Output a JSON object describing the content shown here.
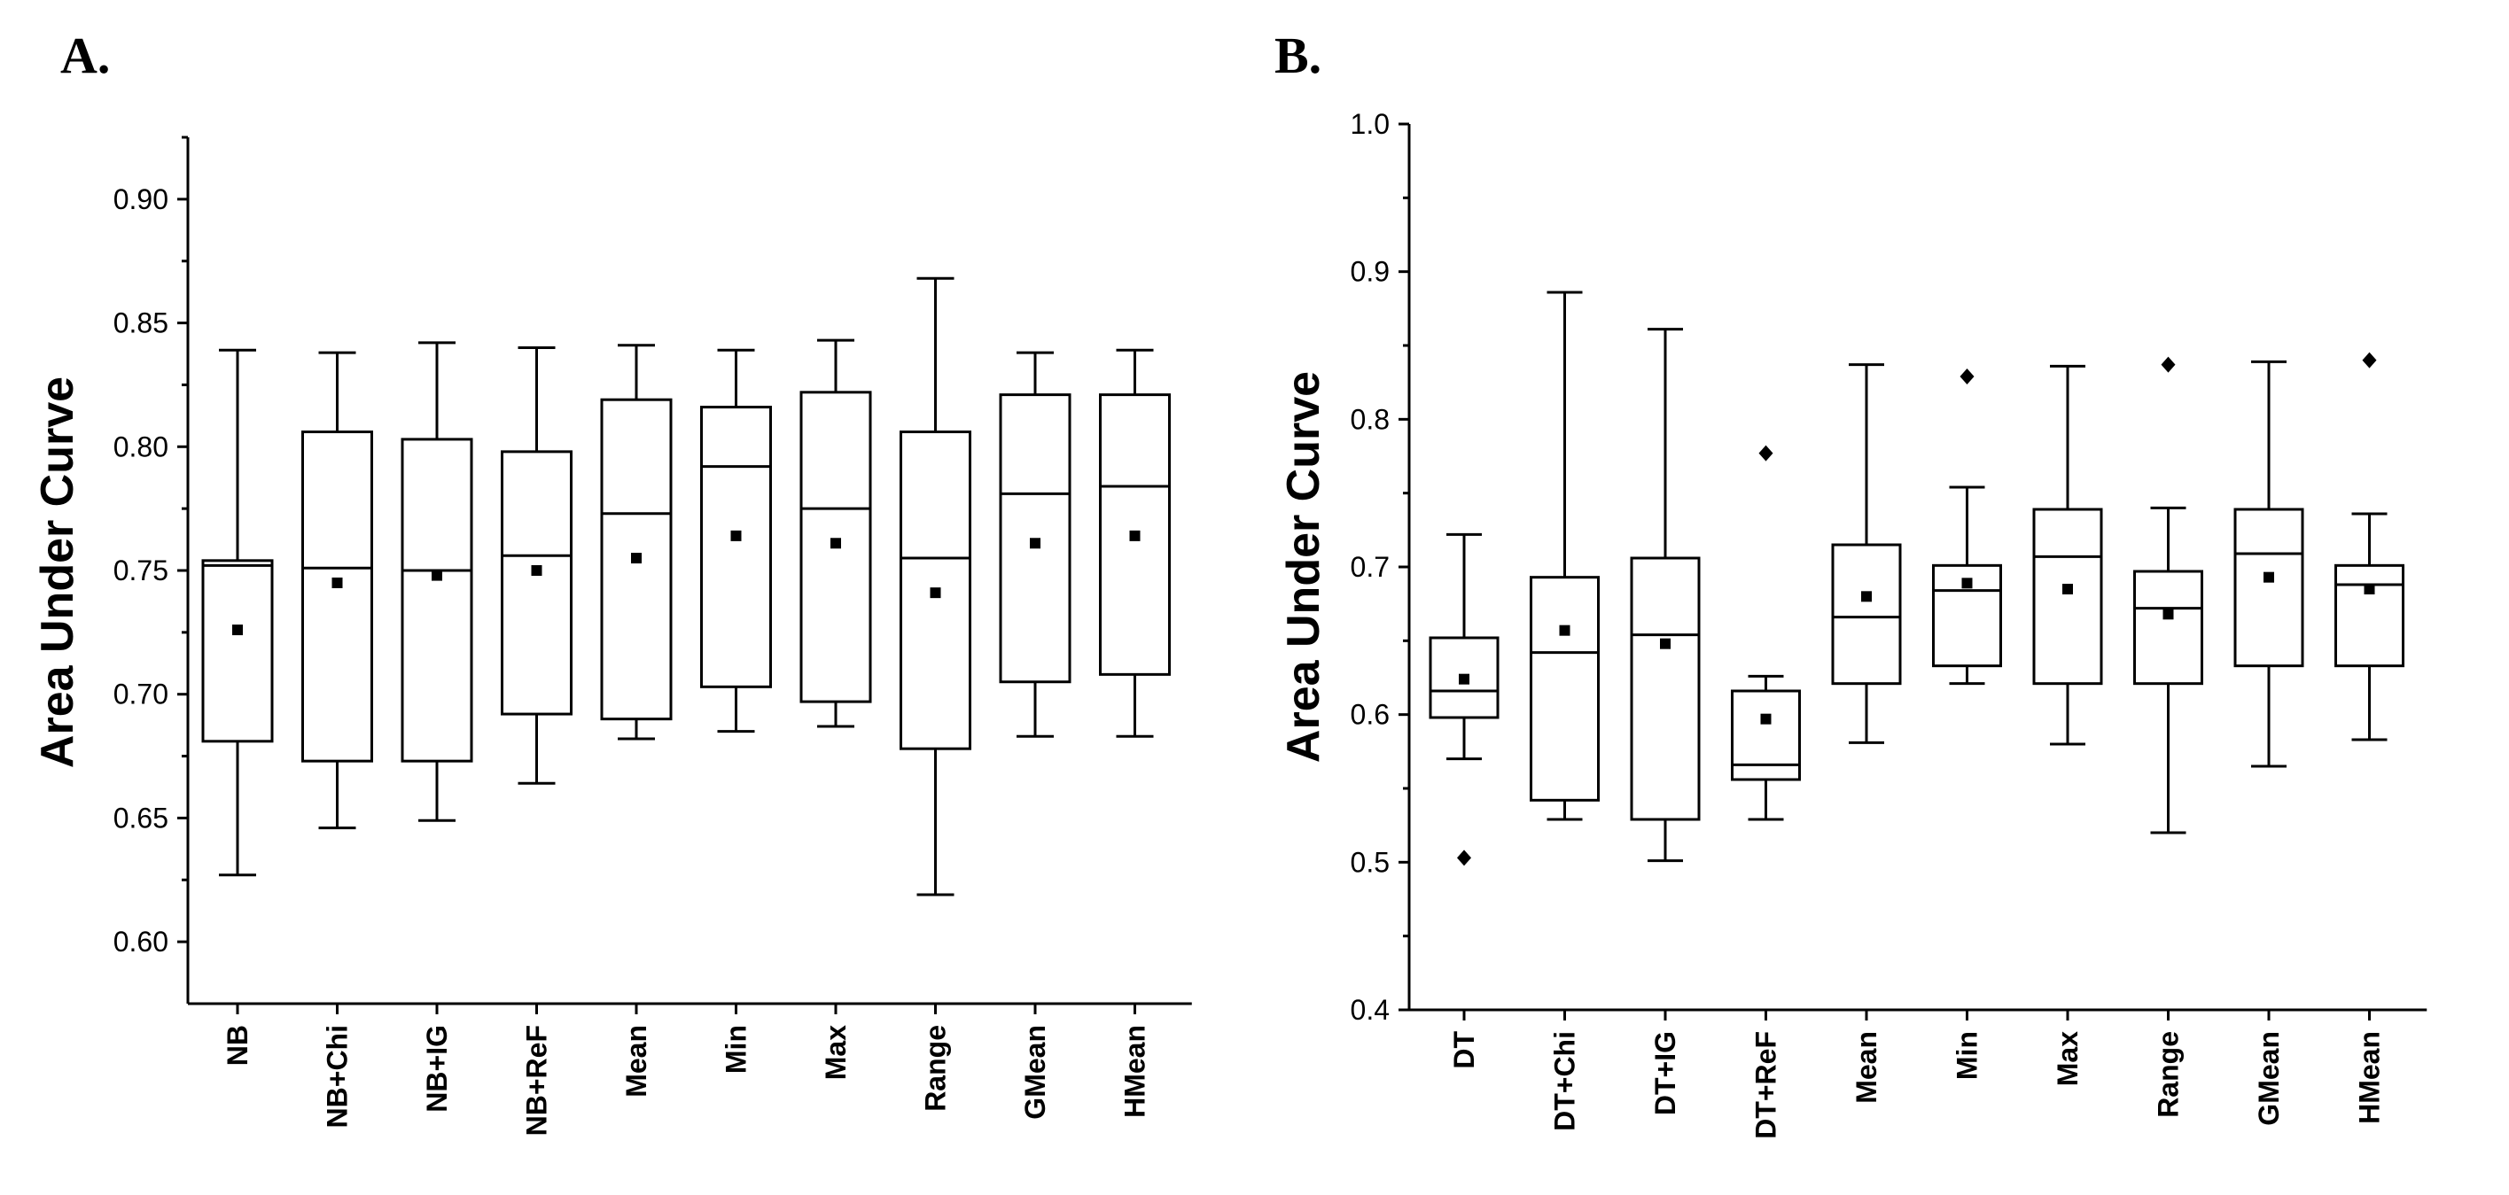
{
  "chart_data": [
    {
      "type": "box",
      "panel": "A.",
      "ylabel": "Area Under Curve",
      "ylim": [
        0.575,
        0.925
      ],
      "yticks": [
        "0.60",
        "0.65",
        "0.70",
        "0.75",
        "0.80",
        "0.85",
        "0.90"
      ],
      "categories": [
        "NB",
        "NB+Chi",
        "NB+IG",
        "NB+ReF",
        "Mean",
        "Min",
        "Max",
        "Range",
        "GMean",
        "HMean"
      ],
      "boxes": [
        {
          "whisker_low": 0.627,
          "q1": 0.681,
          "median": 0.752,
          "q3": 0.754,
          "whisker_high": 0.839,
          "mean": 0.726,
          "outliers": []
        },
        {
          "whisker_low": 0.646,
          "q1": 0.673,
          "median": 0.751,
          "q3": 0.806,
          "whisker_high": 0.838,
          "mean": 0.745,
          "outliers": []
        },
        {
          "whisker_low": 0.649,
          "q1": 0.673,
          "median": 0.75,
          "q3": 0.803,
          "whisker_high": 0.842,
          "mean": 0.748,
          "outliers": []
        },
        {
          "whisker_low": 0.664,
          "q1": 0.692,
          "median": 0.756,
          "q3": 0.798,
          "whisker_high": 0.84,
          "mean": 0.75,
          "outliers": []
        },
        {
          "whisker_low": 0.682,
          "q1": 0.69,
          "median": 0.773,
          "q3": 0.819,
          "whisker_high": 0.841,
          "mean": 0.755,
          "outliers": []
        },
        {
          "whisker_low": 0.685,
          "q1": 0.703,
          "median": 0.792,
          "q3": 0.816,
          "whisker_high": 0.839,
          "mean": 0.764,
          "outliers": []
        },
        {
          "whisker_low": 0.687,
          "q1": 0.697,
          "median": 0.775,
          "q3": 0.822,
          "whisker_high": 0.843,
          "mean": 0.761,
          "outliers": []
        },
        {
          "whisker_low": 0.619,
          "q1": 0.678,
          "median": 0.755,
          "q3": 0.806,
          "whisker_high": 0.868,
          "mean": 0.741,
          "outliers": []
        },
        {
          "whisker_low": 0.683,
          "q1": 0.705,
          "median": 0.781,
          "q3": 0.821,
          "whisker_high": 0.838,
          "mean": 0.761,
          "outliers": []
        },
        {
          "whisker_low": 0.683,
          "q1": 0.708,
          "median": 0.784,
          "q3": 0.821,
          "whisker_high": 0.839,
          "mean": 0.764,
          "outliers": []
        }
      ]
    },
    {
      "type": "box",
      "panel": "B.",
      "ylabel": "Area Under Curve",
      "ylim": [
        0.4,
        1.0
      ],
      "yticks": [
        "0.4",
        "0.5",
        "0.6",
        "0.7",
        "0.8",
        "0.9",
        "1.0"
      ],
      "categories": [
        "DT",
        "DT+Chi",
        "DT+IG",
        "DT+ReF",
        "Mean",
        "Min",
        "Max",
        "Range",
        "GMean",
        "HMean"
      ],
      "boxes": [
        {
          "whisker_low": 0.57,
          "q1": 0.598,
          "median": 0.616,
          "q3": 0.652,
          "whisker_high": 0.722,
          "mean": 0.624,
          "outliers": [
            0.503
          ]
        },
        {
          "whisker_low": 0.529,
          "q1": 0.542,
          "median": 0.642,
          "q3": 0.693,
          "whisker_high": 0.886,
          "mean": 0.657,
          "outliers": []
        },
        {
          "whisker_low": 0.501,
          "q1": 0.529,
          "median": 0.654,
          "q3": 0.706,
          "whisker_high": 0.861,
          "mean": 0.648,
          "outliers": []
        },
        {
          "whisker_low": 0.529,
          "q1": 0.556,
          "median": 0.566,
          "q3": 0.616,
          "whisker_high": 0.626,
          "mean": 0.597,
          "outliers": [
            0.777
          ]
        },
        {
          "whisker_low": 0.581,
          "q1": 0.621,
          "median": 0.666,
          "q3": 0.715,
          "whisker_high": 0.837,
          "mean": 0.68,
          "outliers": []
        },
        {
          "whisker_low": 0.621,
          "q1": 0.633,
          "median": 0.684,
          "q3": 0.701,
          "whisker_high": 0.754,
          "mean": 0.689,
          "outliers": [
            0.829
          ]
        },
        {
          "whisker_low": 0.58,
          "q1": 0.621,
          "median": 0.707,
          "q3": 0.739,
          "whisker_high": 0.836,
          "mean": 0.685,
          "outliers": []
        },
        {
          "whisker_low": 0.52,
          "q1": 0.621,
          "median": 0.672,
          "q3": 0.697,
          "whisker_high": 0.74,
          "mean": 0.668,
          "outliers": [
            0.837
          ]
        },
        {
          "whisker_low": 0.565,
          "q1": 0.633,
          "median": 0.709,
          "q3": 0.739,
          "whisker_high": 0.839,
          "mean": 0.693,
          "outliers": []
        },
        {
          "whisker_low": 0.583,
          "q1": 0.633,
          "median": 0.688,
          "q3": 0.701,
          "whisker_high": 0.736,
          "mean": 0.685,
          "outliers": [
            0.84
          ]
        }
      ]
    }
  ]
}
